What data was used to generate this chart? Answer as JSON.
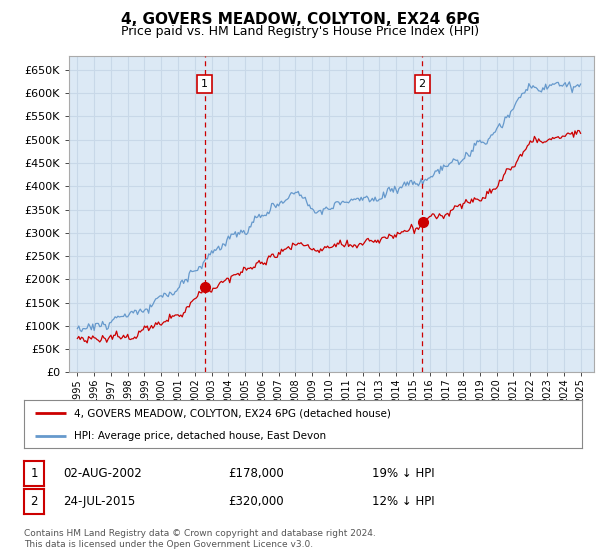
{
  "title": "4, GOVERS MEADOW, COLYTON, EX24 6PG",
  "subtitle": "Price paid vs. HM Land Registry's House Price Index (HPI)",
  "title_fontsize": 11,
  "subtitle_fontsize": 9,
  "background_color": "#ffffff",
  "plot_bg_color": "#dce9f5",
  "grid_color": "#c8d8e8",
  "ylim": [
    0,
    680000
  ],
  "yticks": [
    0,
    50000,
    100000,
    150000,
    200000,
    250000,
    300000,
    350000,
    400000,
    450000,
    500000,
    550000,
    600000,
    650000
  ],
  "transaction1": {
    "date_num": 2002.58,
    "price": 178000,
    "label": "1",
    "date_str": "02-AUG-2002",
    "pct": "19% ↓ HPI"
  },
  "transaction2": {
    "date_num": 2015.55,
    "price": 320000,
    "label": "2",
    "date_str": "24-JUL-2015",
    "pct": "12% ↓ HPI"
  },
  "legend_line1": "4, GOVERS MEADOW, COLYTON, EX24 6PG (detached house)",
  "legend_line2": "HPI: Average price, detached house, East Devon",
  "footer1": "Contains HM Land Registry data © Crown copyright and database right 2024.",
  "footer2": "This data is licensed under the Open Government Licence v3.0.",
  "hpi_color": "#6699cc",
  "price_color": "#cc0000",
  "vline_color": "#cc0000",
  "marker_color": "#cc0000",
  "hpi_seed": 10,
  "price_seed": 20
}
